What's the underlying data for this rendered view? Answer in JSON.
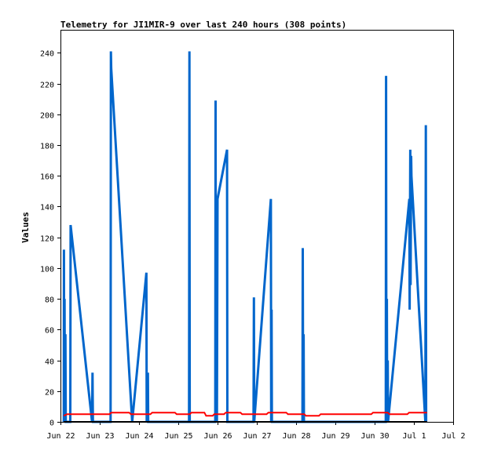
{
  "chart_data": {
    "type": "line",
    "title": "Telemetry for JI1MIR-9 over last 240 hours (308 points)",
    "ylabel": "Values",
    "xlabel": "",
    "ylim": [
      0,
      255
    ],
    "xlim": [
      0,
      240
    ],
    "yticks": [
      0,
      20,
      40,
      60,
      80,
      100,
      120,
      140,
      160,
      180,
      200,
      220,
      240
    ],
    "xticks": [
      {
        "x": 0,
        "label": "Jun 22"
      },
      {
        "x": 24,
        "label": "Jun 23"
      },
      {
        "x": 48,
        "label": "Jun 24"
      },
      {
        "x": 72,
        "label": "Jun 25"
      },
      {
        "x": 96,
        "label": "Jun 26"
      },
      {
        "x": 120,
        "label": "Jun 27"
      },
      {
        "x": 144,
        "label": "Jun 28"
      },
      {
        "x": 168,
        "label": "Jun 29"
      },
      {
        "x": 192,
        "label": "Jun 30"
      },
      {
        "x": 216,
        "label": "Jul 1"
      },
      {
        "x": 240,
        "label": "Jul 2"
      }
    ],
    "grid": false,
    "series": [
      {
        "color": "#0066cc",
        "points": [
          [
            2.0,
            0
          ],
          [
            2.1,
            112
          ],
          [
            2.3,
            0
          ],
          [
            2.5,
            80
          ],
          [
            2.7,
            0
          ],
          [
            3.0,
            57
          ],
          [
            3.2,
            0
          ],
          [
            6.0,
            0
          ],
          [
            6.2,
            128
          ],
          [
            19.3,
            0
          ],
          [
            19.6,
            32
          ],
          [
            19.8,
            0
          ],
          [
            30.6,
            0
          ],
          [
            30.8,
            241
          ],
          [
            31.0,
            230
          ],
          [
            43.8,
            0
          ],
          [
            52.5,
            97
          ],
          [
            52.7,
            0
          ],
          [
            53.4,
            32
          ],
          [
            53.6,
            0
          ],
          [
            78.6,
            0
          ],
          [
            78.8,
            241
          ],
          [
            79.0,
            0
          ],
          [
            94.6,
            0
          ],
          [
            94.8,
            209
          ],
          [
            95.0,
            0
          ],
          [
            95.4,
            112
          ],
          [
            95.6,
            0
          ],
          [
            96.0,
            145
          ],
          [
            101.8,
            177
          ],
          [
            102.0,
            0
          ],
          [
            118.0,
            0
          ],
          [
            118.2,
            81
          ],
          [
            118.4,
            0
          ],
          [
            128.6,
            145
          ],
          [
            128.8,
            0
          ],
          [
            129.0,
            73
          ],
          [
            129.2,
            0
          ],
          [
            147.9,
            0
          ],
          [
            148.1,
            113
          ],
          [
            148.3,
            0
          ],
          [
            148.6,
            57
          ],
          [
            148.8,
            0
          ],
          [
            198.8,
            0
          ],
          [
            199.0,
            225
          ],
          [
            199.2,
            0
          ],
          [
            199.5,
            80
          ],
          [
            199.7,
            0
          ],
          [
            200.0,
            40
          ],
          [
            200.2,
            0
          ],
          [
            213.2,
            145
          ],
          [
            213.4,
            73
          ],
          [
            213.8,
            177
          ],
          [
            214.0,
            89
          ],
          [
            214.3,
            173
          ],
          [
            214.5,
            160
          ],
          [
            223.0,
            0
          ],
          [
            223.3,
            193
          ],
          [
            223.5,
            0
          ]
        ]
      },
      {
        "color": "#ff0000",
        "points": [
          [
            2.0,
            4
          ],
          [
            4.0,
            5
          ],
          [
            30.0,
            5
          ],
          [
            31.0,
            6
          ],
          [
            42.0,
            6
          ],
          [
            43.0,
            5
          ],
          [
            55.0,
            5
          ],
          [
            56.0,
            6
          ],
          [
            70.0,
            6
          ],
          [
            71.0,
            5
          ],
          [
            79.0,
            5
          ],
          [
            80.0,
            6
          ],
          [
            88.0,
            6
          ],
          [
            89.0,
            4
          ],
          [
            93.0,
            4
          ],
          [
            94.0,
            5
          ],
          [
            100.0,
            5
          ],
          [
            101.0,
            6
          ],
          [
            110.0,
            6
          ],
          [
            111.0,
            5
          ],
          [
            126.0,
            5
          ],
          [
            127.0,
            6
          ],
          [
            138.0,
            6
          ],
          [
            139.0,
            5
          ],
          [
            149.0,
            5
          ],
          [
            150.0,
            4
          ],
          [
            158.0,
            4
          ],
          [
            159.0,
            5
          ],
          [
            190.0,
            5
          ],
          [
            191.0,
            6
          ],
          [
            200.0,
            6
          ],
          [
            201.0,
            5
          ],
          [
            212.0,
            5
          ],
          [
            213.0,
            6
          ],
          [
            224.0,
            6
          ]
        ]
      },
      {
        "color": "#000000",
        "points": [
          [
            2.0,
            0
          ],
          [
            224.0,
            0
          ]
        ]
      }
    ]
  }
}
